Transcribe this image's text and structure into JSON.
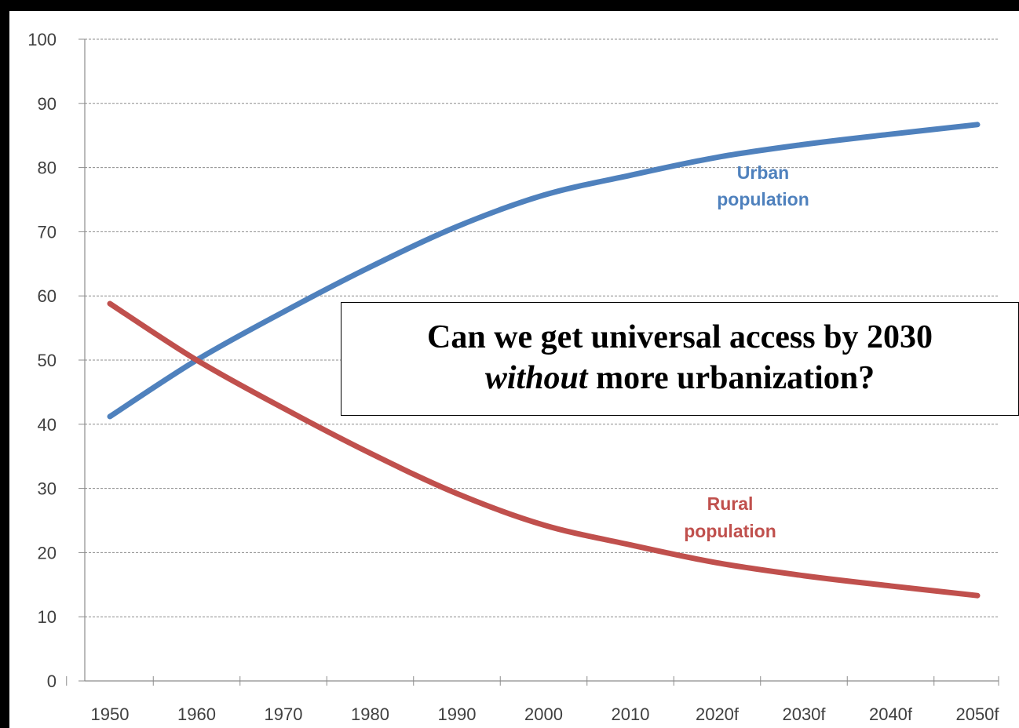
{
  "chart_data": {
    "type": "line",
    "categories": [
      "1950",
      "1960",
      "1970",
      "1980",
      "1990",
      "2000",
      "2010",
      "2020f",
      "2030f",
      "2040f",
      "2050f"
    ],
    "yticks": [
      "0",
      "10",
      "20",
      "30",
      "40",
      "50",
      "60",
      "70",
      "80",
      "90",
      "100"
    ],
    "ylim": [
      0,
      100
    ],
    "grid": true,
    "series": [
      {
        "name": "Urban population",
        "label_lines": [
          "Urban",
          "population"
        ],
        "color": "#4F81BD",
        "values": [
          41.2,
          50.0,
          57.5,
          64.5,
          70.8,
          75.7,
          78.8,
          81.6,
          83.6,
          85.2,
          86.7
        ]
      },
      {
        "name": "Rural population",
        "label_lines": [
          "Rural",
          "population"
        ],
        "color": "#C0504D",
        "values": [
          58.8,
          50.0,
          42.5,
          35.5,
          29.2,
          24.3,
          21.2,
          18.4,
          16.4,
          14.8,
          13.3
        ]
      }
    ],
    "annotation": {
      "line1": "Can we get universal access by 2030",
      "line2_italic": "without",
      "line2_rest": " more urbanization?"
    }
  }
}
